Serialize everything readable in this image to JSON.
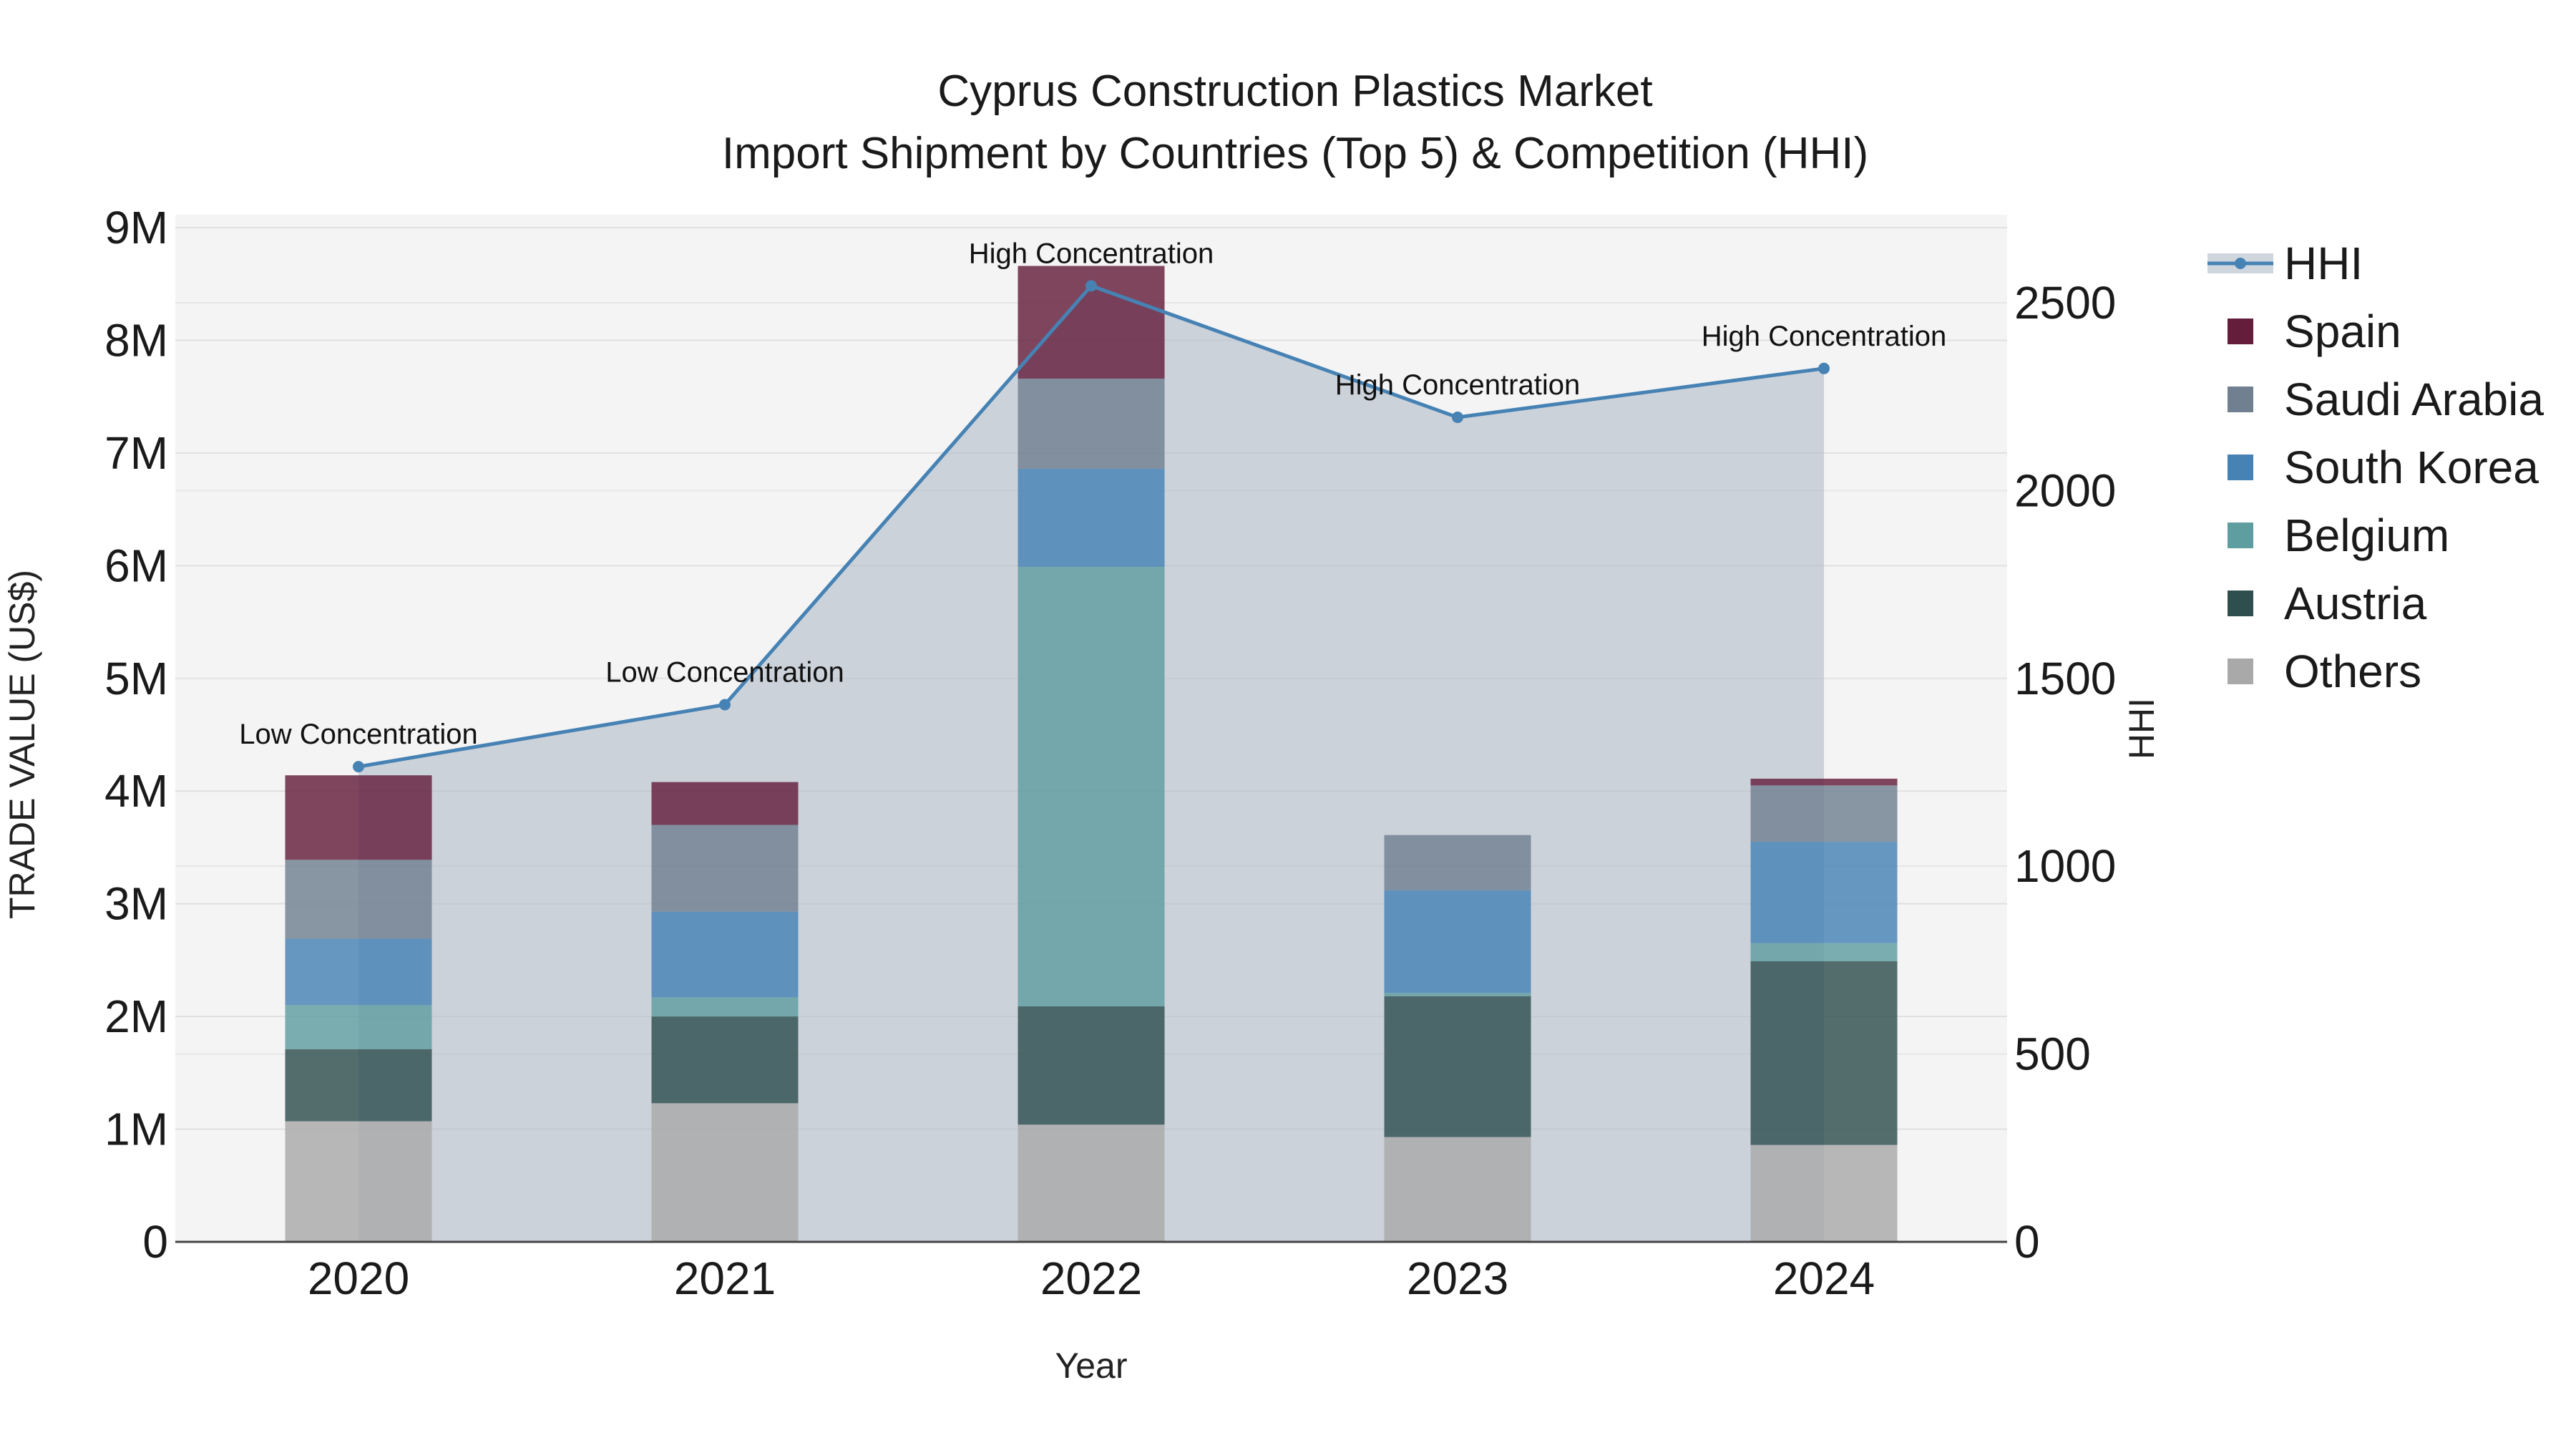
{
  "chart_data": {
    "type": "bar",
    "title": "Cyprus Construction Plastics Market",
    "subtitle": "Import Shipment by Countries (Top 5) & Competition (HHI)",
    "xlabel": "Year",
    "ylabel": "TRADE VALUE (US$)",
    "y2label": "HHI",
    "categories": [
      "2020",
      "2021",
      "2022",
      "2023",
      "2024"
    ],
    "ylim": [
      0,
      9000000
    ],
    "y_ticks": [
      0,
      1000000,
      2000000,
      3000000,
      4000000,
      5000000,
      6000000,
      7000000,
      8000000,
      9000000
    ],
    "y_tick_labels": [
      "0",
      "1M",
      "2M",
      "3M",
      "4M",
      "5M",
      "6M",
      "7M",
      "8M",
      "9M"
    ],
    "y2lim": [
      0,
      2700
    ],
    "y2_ticks": [
      0,
      500,
      1000,
      1500,
      2000,
      2500
    ],
    "y2_tick_labels": [
      "0",
      "500",
      "1000",
      "1500",
      "2000",
      "2500"
    ],
    "stacked": true,
    "series": [
      {
        "name": "Others",
        "color": "#a9a9a9",
        "values": [
          1070000,
          1230000,
          1040000,
          930000,
          860000
        ]
      },
      {
        "name": "Austria",
        "color": "#2f4f4f",
        "values": [
          640000,
          770000,
          1050000,
          1250000,
          1630000
        ]
      },
      {
        "name": "Belgium",
        "color": "#5f9ea0",
        "values": [
          390000,
          170000,
          3900000,
          30000,
          160000
        ]
      },
      {
        "name": "South Korea",
        "color": "#4682b4",
        "values": [
          590000,
          760000,
          870000,
          910000,
          900000
        ]
      },
      {
        "name": "Saudi Arabia",
        "color": "#708090",
        "values": [
          700000,
          770000,
          800000,
          490000,
          500000
        ]
      },
      {
        "name": "Spain",
        "color": "#641e3c",
        "values": [
          750000,
          380000,
          1000000,
          0,
          60000
        ]
      }
    ],
    "hhi": {
      "name": "HHI",
      "color": "#4682b4",
      "values": [
        1265,
        1430,
        2545,
        2195,
        2325
      ],
      "labels": [
        "Low Concentration",
        "Low Concentration",
        "High Concentration",
        "High Concentration",
        "High Concentration"
      ]
    },
    "legend_order": [
      "HHI",
      "Spain",
      "Saudi Arabia",
      "South Korea",
      "Belgium",
      "Austria",
      "Others"
    ],
    "legend_position": "right",
    "grid": true
  }
}
